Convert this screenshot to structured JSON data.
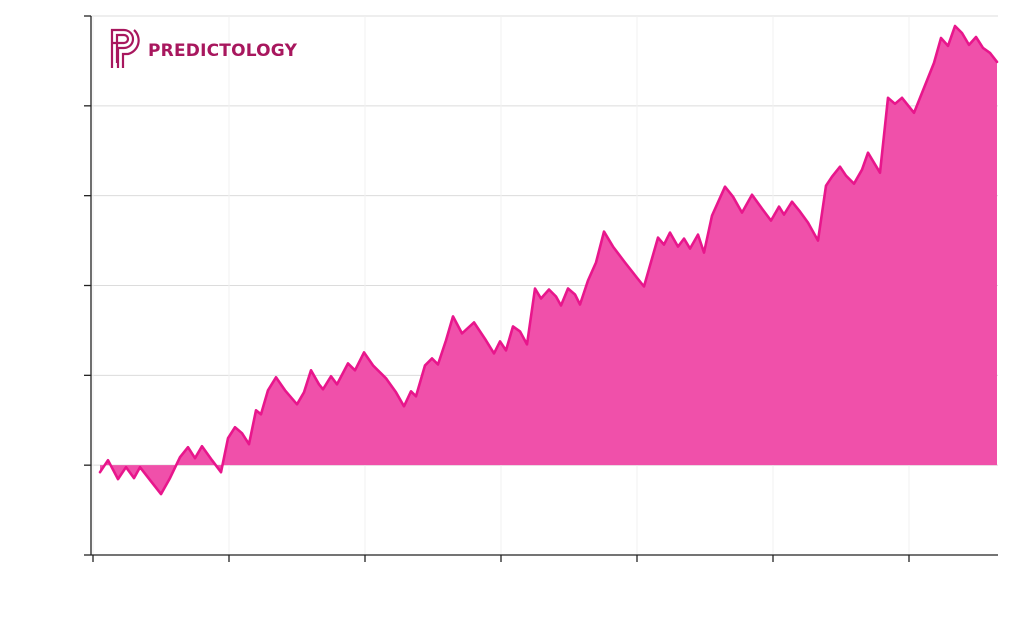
{
  "chart_data": {
    "type": "area",
    "logo": "PREDICTOLOGY",
    "color": "#f050aa",
    "line_color": "#e8168c",
    "grid": true,
    "xlim": [
      0,
      905
    ],
    "xticks": [
      0,
      136,
      272,
      408,
      544,
      680,
      816
    ],
    "ylim": [
      -90,
      450
    ],
    "yticks": [
      -90,
      0,
      90,
      180,
      270,
      360,
      450
    ],
    "x": [
      7,
      15,
      25,
      33,
      41,
      47,
      57,
      68,
      77,
      87,
      95,
      102,
      109,
      119,
      128,
      135,
      142,
      149,
      156,
      163,
      168,
      175,
      183,
      192,
      204,
      211,
      218,
      226,
      230,
      238,
      244,
      255,
      262,
      271,
      280,
      293,
      303,
      311,
      318,
      323,
      332,
      339,
      345,
      353,
      360,
      369,
      381,
      393,
      401,
      407,
      413,
      420,
      427,
      434,
      442,
      448,
      456,
      463,
      468,
      475,
      482,
      487,
      495,
      503,
      511,
      520,
      532,
      543,
      551,
      559,
      565,
      571,
      577,
      585,
      591,
      597,
      605,
      611,
      619,
      632,
      640,
      649,
      659,
      669,
      678,
      686,
      691,
      699,
      707,
      715,
      725,
      733,
      739,
      747,
      753,
      761,
      769,
      775,
      781,
      787,
      795,
      802,
      809,
      821,
      829,
      841,
      848,
      855,
      862,
      869,
      876,
      883,
      890,
      897,
      904
    ],
    "y": [
      -7,
      5,
      -14,
      -2,
      -13,
      -2,
      -15,
      -29,
      -13,
      8,
      18,
      7,
      19,
      5,
      -7,
      27,
      38,
      32,
      21,
      55,
      51,
      75,
      88,
      75,
      61,
      73,
      95,
      81,
      76,
      89,
      81,
      102,
      95,
      113,
      100,
      87,
      73,
      59,
      74,
      69,
      100,
      107,
      101,
      125,
      149,
      132,
      143,
      125,
      112,
      124,
      115,
      139,
      134,
      121,
      177,
      167,
      176,
      169,
      160,
      177,
      171,
      161,
      185,
      203,
      234,
      219,
      203,
      189,
      179,
      207,
      228,
      221,
      233,
      219,
      227,
      217,
      231,
      213,
      250,
      279,
      269,
      253,
      271,
      257,
      245,
      259,
      251,
      264,
      254,
      243,
      225,
      280,
      289,
      299,
      290,
      282,
      296,
      313,
      303,
      293,
      368,
      362,
      368,
      353,
      373,
      403,
      428,
      420,
      440,
      433,
      421,
      429,
      418,
      413,
      404
    ]
  }
}
